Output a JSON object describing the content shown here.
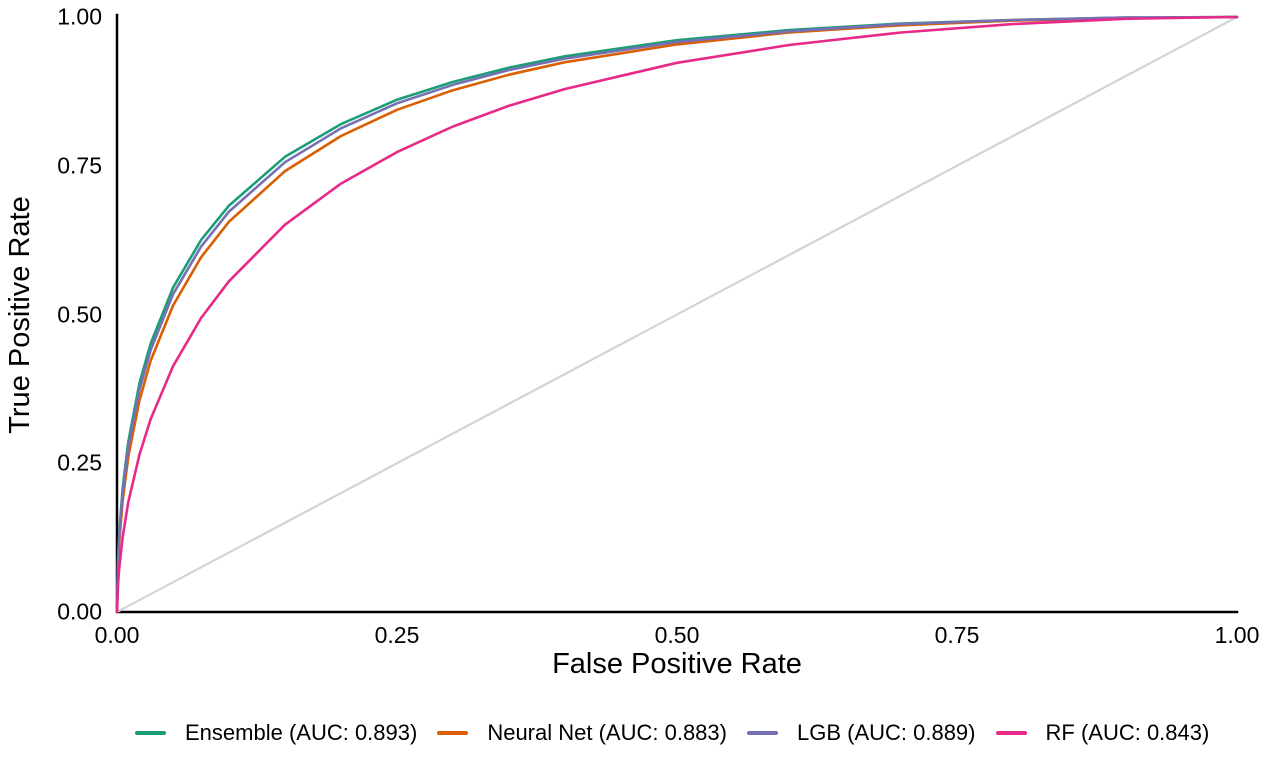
{
  "figure": {
    "background": "#ffffff",
    "axis_color": "#000000",
    "text_color": "#000000"
  },
  "chart_data": {
    "type": "line",
    "title": "",
    "xlabel": "False Positive Rate",
    "ylabel": "True Positive Rate",
    "xlim": [
      0,
      1
    ],
    "ylim": [
      0,
      1
    ],
    "grid": false,
    "legend_position": "bottom",
    "x_ticks": [
      {
        "v": 0.0,
        "label": "0.00"
      },
      {
        "v": 0.25,
        "label": "0.25"
      },
      {
        "v": 0.5,
        "label": "0.50"
      },
      {
        "v": 0.75,
        "label": "0.75"
      },
      {
        "v": 1.0,
        "label": "1.00"
      }
    ],
    "y_ticks": [
      {
        "v": 0.0,
        "label": "0.00"
      },
      {
        "v": 0.25,
        "label": "0.25"
      },
      {
        "v": 0.5,
        "label": "0.50"
      },
      {
        "v": 0.75,
        "label": "0.75"
      },
      {
        "v": 1.0,
        "label": "1.00"
      }
    ],
    "diagonal_reference": {
      "color": "#d3d3d3",
      "points": [
        [
          0,
          0
        ],
        [
          1,
          1
        ]
      ]
    },
    "series": [
      {
        "name": "Ensemble",
        "auc": 0.893,
        "label": "Ensemble (AUC: 0.893)",
        "color": "#1B9E77",
        "points": [
          [
            0,
            0
          ],
          [
            0.001,
            0.091
          ],
          [
            0.002,
            0.131
          ],
          [
            0.005,
            0.207
          ],
          [
            0.01,
            0.285
          ],
          [
            0.02,
            0.384
          ],
          [
            0.03,
            0.451
          ],
          [
            0.05,
            0.545
          ],
          [
            0.075,
            0.625
          ],
          [
            0.1,
            0.683
          ],
          [
            0.15,
            0.765
          ],
          [
            0.2,
            0.82
          ],
          [
            0.25,
            0.861
          ],
          [
            0.3,
            0.891
          ],
          [
            0.35,
            0.915
          ],
          [
            0.4,
            0.934
          ],
          [
            0.5,
            0.961
          ],
          [
            0.6,
            0.978
          ],
          [
            0.7,
            0.989
          ],
          [
            0.8,
            0.995
          ],
          [
            0.9,
            0.999
          ],
          [
            1,
            1
          ]
        ]
      },
      {
        "name": "Neural Net",
        "auc": 0.883,
        "label": "Neural Net (AUC: 0.883)",
        "color": "#D95F02",
        "points": [
          [
            0,
            0
          ],
          [
            0.001,
            0.08
          ],
          [
            0.002,
            0.116
          ],
          [
            0.005,
            0.186
          ],
          [
            0.01,
            0.26
          ],
          [
            0.02,
            0.355
          ],
          [
            0.03,
            0.422
          ],
          [
            0.05,
            0.515
          ],
          [
            0.075,
            0.596
          ],
          [
            0.1,
            0.656
          ],
          [
            0.15,
            0.741
          ],
          [
            0.2,
            0.8
          ],
          [
            0.25,
            0.844
          ],
          [
            0.3,
            0.877
          ],
          [
            0.35,
            0.903
          ],
          [
            0.4,
            0.924
          ],
          [
            0.5,
            0.954
          ],
          [
            0.6,
            0.974
          ],
          [
            0.7,
            0.986
          ],
          [
            0.8,
            0.994
          ],
          [
            0.9,
            0.998
          ],
          [
            1,
            1
          ]
        ]
      },
      {
        "name": "LGB",
        "auc": 0.889,
        "label": "LGB (AUC: 0.889)",
        "color": "#7570B3",
        "points": [
          [
            0,
            0
          ],
          [
            0.001,
            0.087
          ],
          [
            0.002,
            0.126
          ],
          [
            0.005,
            0.199
          ],
          [
            0.01,
            0.276
          ],
          [
            0.02,
            0.373
          ],
          [
            0.03,
            0.44
          ],
          [
            0.05,
            0.534
          ],
          [
            0.075,
            0.614
          ],
          [
            0.1,
            0.673
          ],
          [
            0.15,
            0.756
          ],
          [
            0.2,
            0.813
          ],
          [
            0.25,
            0.855
          ],
          [
            0.3,
            0.886
          ],
          [
            0.35,
            0.911
          ],
          [
            0.4,
            0.93
          ],
          [
            0.5,
            0.958
          ],
          [
            0.6,
            0.976
          ],
          [
            0.7,
            0.988
          ],
          [
            0.8,
            0.995
          ],
          [
            0.9,
            0.999
          ],
          [
            1,
            1
          ]
        ]
      },
      {
        "name": "RF",
        "auc": 0.843,
        "label": "RF (AUC: 0.843)",
        "color": "#E7298A",
        "points": [
          [
            0,
            0
          ],
          [
            0.001,
            0.048
          ],
          [
            0.002,
            0.073
          ],
          [
            0.005,
            0.125
          ],
          [
            0.01,
            0.184
          ],
          [
            0.02,
            0.264
          ],
          [
            0.03,
            0.324
          ],
          [
            0.05,
            0.413
          ],
          [
            0.075,
            0.494
          ],
          [
            0.1,
            0.556
          ],
          [
            0.15,
            0.651
          ],
          [
            0.2,
            0.72
          ],
          [
            0.25,
            0.773
          ],
          [
            0.3,
            0.816
          ],
          [
            0.35,
            0.851
          ],
          [
            0.4,
            0.879
          ],
          [
            0.5,
            0.923
          ],
          [
            0.6,
            0.953
          ],
          [
            0.7,
            0.974
          ],
          [
            0.8,
            0.988
          ],
          [
            0.9,
            0.997
          ],
          [
            1,
            1
          ]
        ]
      }
    ]
  }
}
